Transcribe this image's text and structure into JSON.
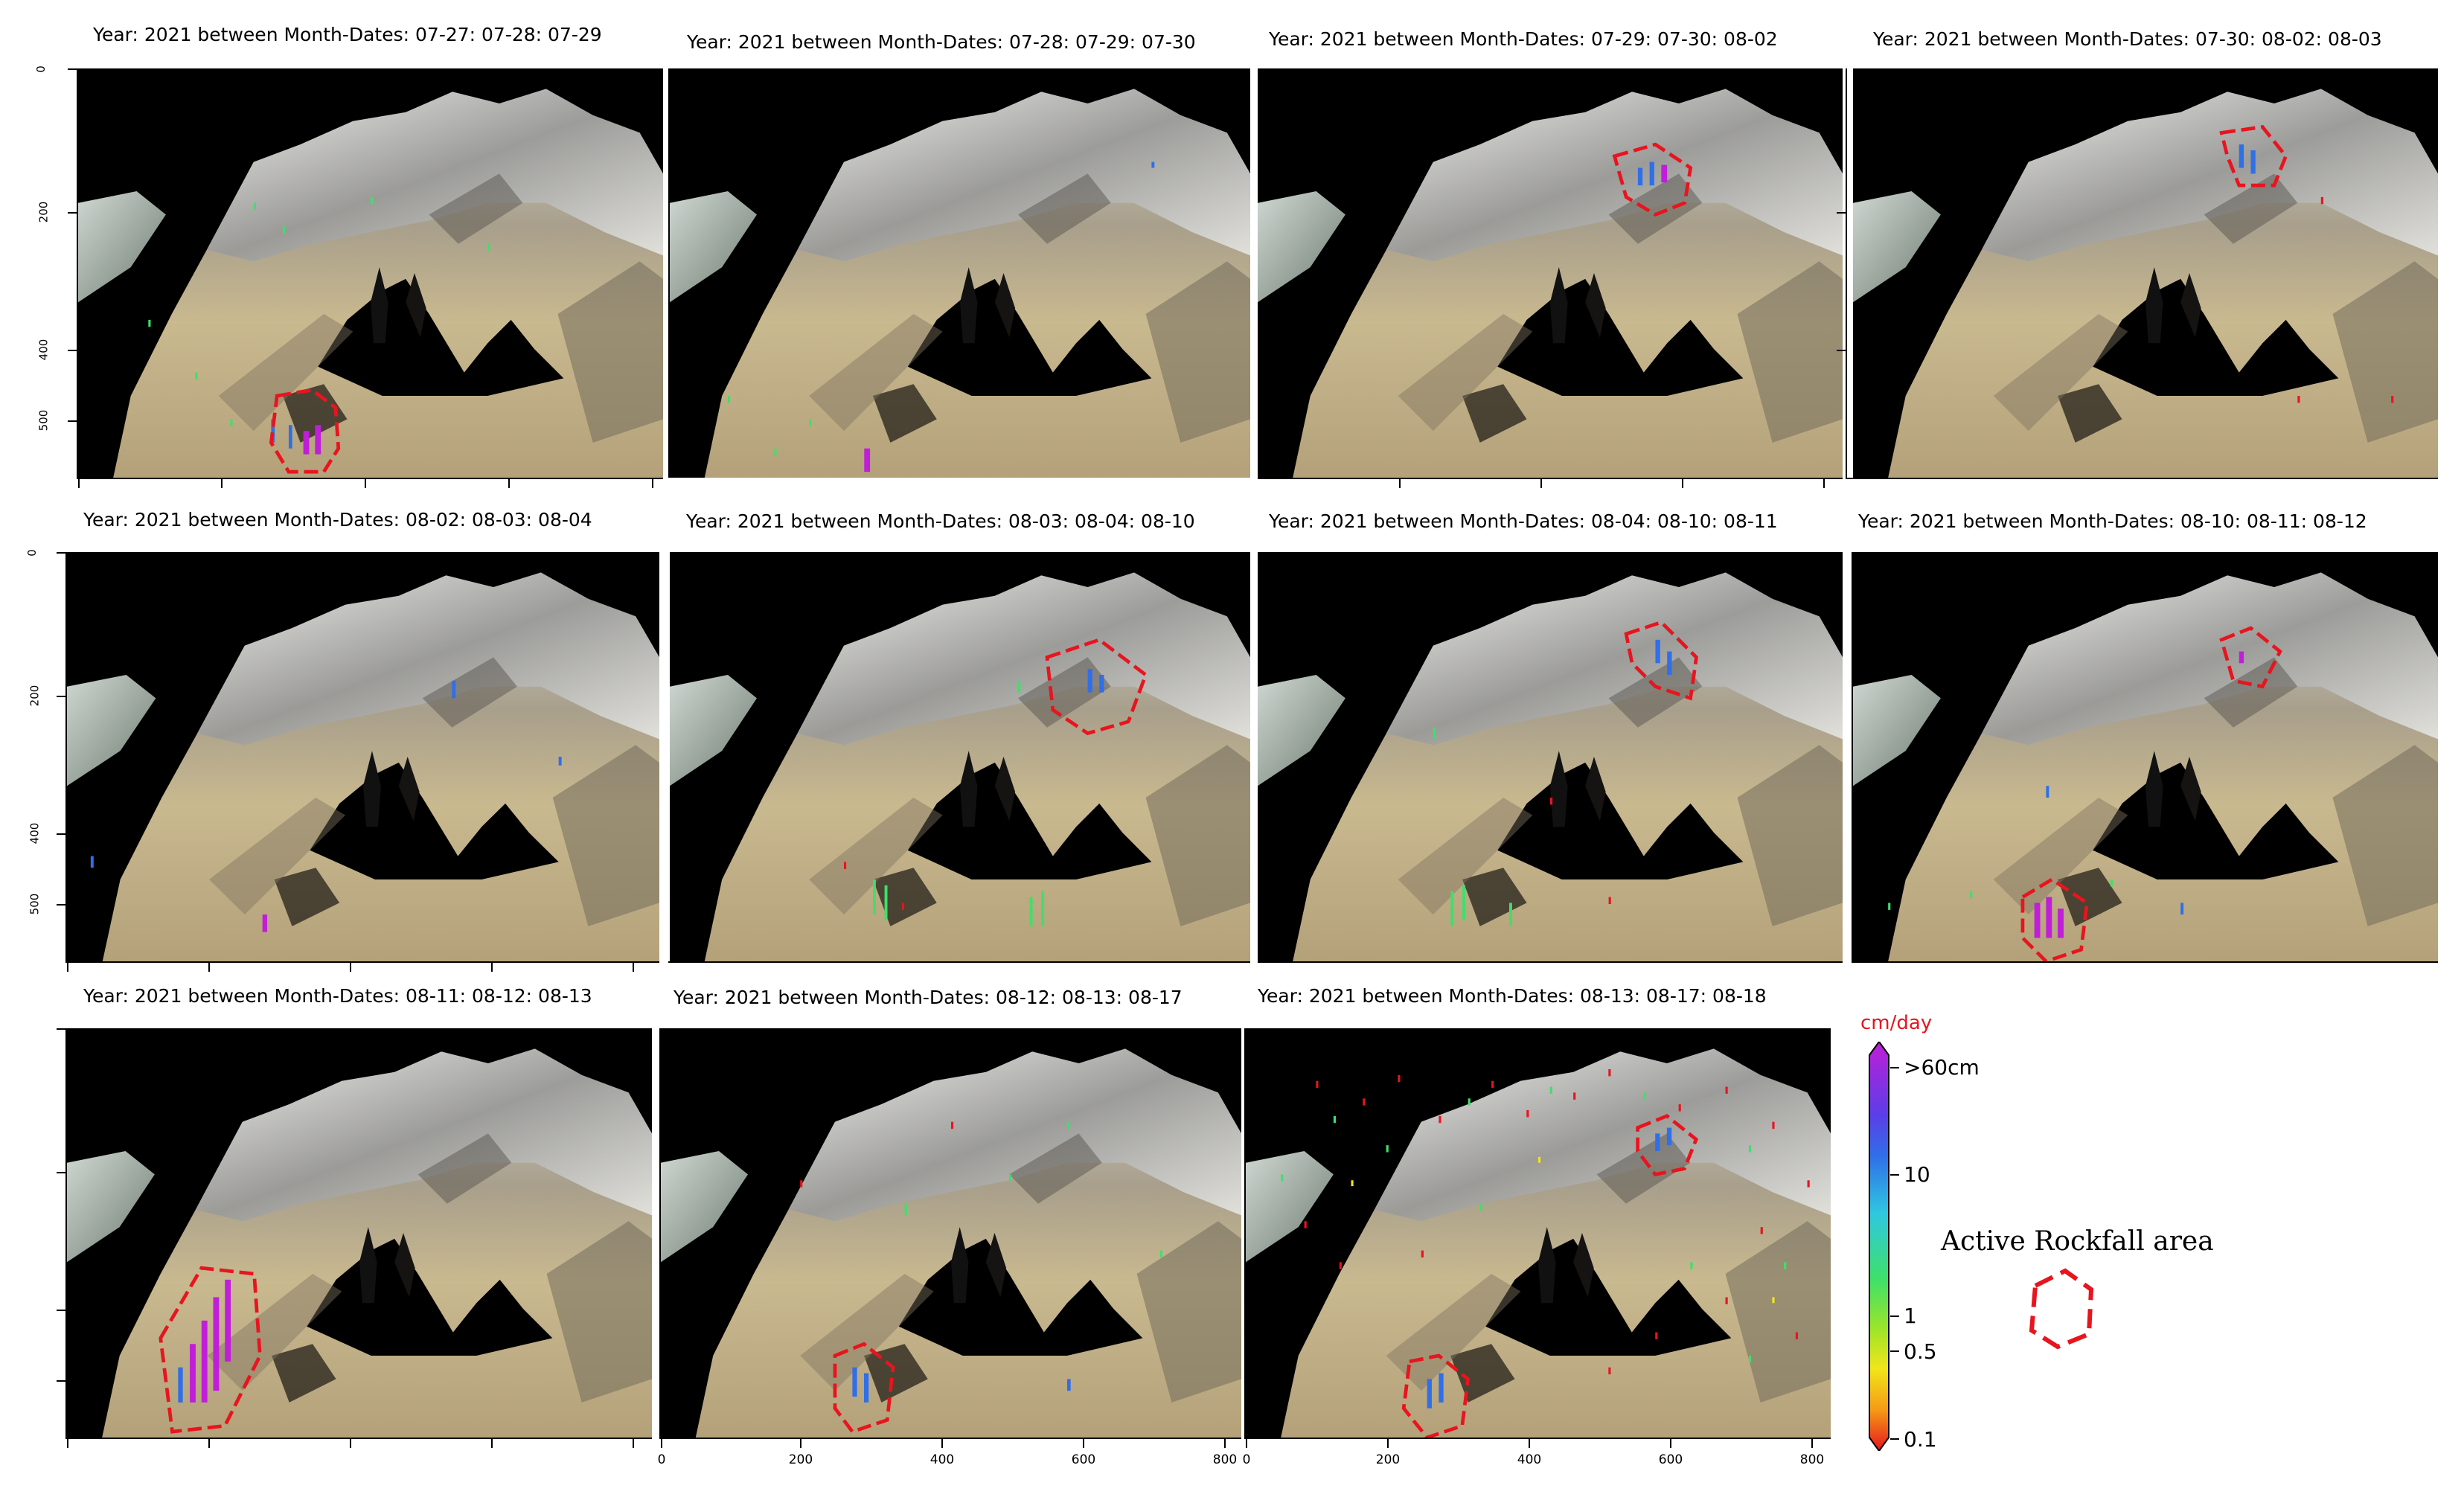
{
  "panels": [
    {
      "title": "Year: 2021 between Month-Dates: 07-27: 07-28: 07-29"
    },
    {
      "title": "Year: 2021 between Month-Dates: 07-28: 07-29: 07-30"
    },
    {
      "title": "Year: 2021 between Month-Dates: 07-29: 07-30: 08-02"
    },
    {
      "title": "Year: 2021 between Month-Dates: 07-30: 08-02: 08-03"
    },
    {
      "title": "Year: 2021 between Month-Dates: 08-02: 08-03: 08-04"
    },
    {
      "title": "Year: 2021 between Month-Dates: 08-03: 08-04: 08-10"
    },
    {
      "title": "Year: 2021 between Month-Dates: 08-04: 08-10: 08-11"
    },
    {
      "title": "Year: 2021 between Month-Dates: 08-10: 08-11: 08-12"
    },
    {
      "title": "Year: 2021 between Month-Dates: 08-11: 08-12: 08-13"
    },
    {
      "title": "Year: 2021 between Month-Dates: 08-12: 08-13: 08-17"
    },
    {
      "title": "Year: 2021 between Month-Dates: 08-13: 08-17: 08-18"
    }
  ],
  "y_ticks": [
    "0",
    "200",
    "400",
    "500"
  ],
  "x_ticks": [
    "0",
    "200",
    "400",
    "600",
    "800"
  ],
  "colorbar": {
    "unit": "cm/day",
    "labels": [
      ">60cm",
      "10",
      "1",
      "0.5",
      "0.1"
    ],
    "colors": [
      "#c01ed8",
      "#5a3ee8",
      "#2f6fe8",
      "#2fc8e0",
      "#3ee06a",
      "#9be52a",
      "#f2e51a",
      "#f59a16",
      "#e8141e"
    ]
  },
  "legend": {
    "label": "Active Rockfall area",
    "outline_color": "#e8141e"
  },
  "colors": {
    "rockfall_outline": "#e8141e",
    "image_background": "#000000"
  }
}
